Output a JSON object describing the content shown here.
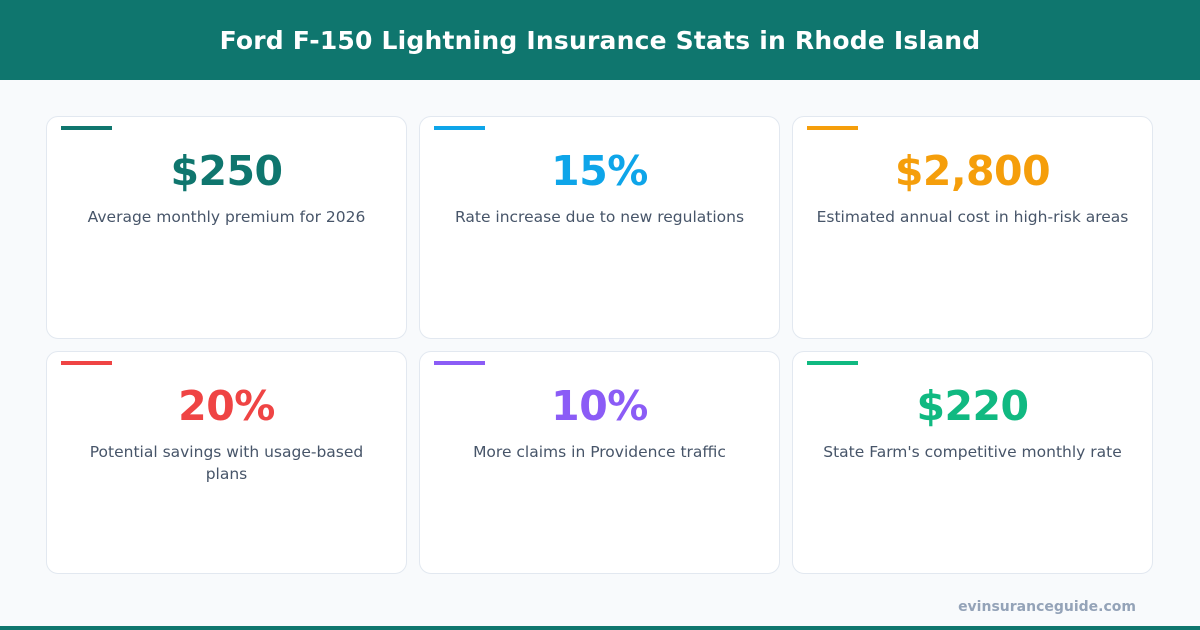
{
  "header": {
    "title": "Ford F-150 Lightning Insurance Stats in Rhode Island"
  },
  "stats": [
    {
      "value": "$250",
      "label": "Average monthly premium for 2026",
      "color": "#0f766e"
    },
    {
      "value": "15%",
      "label": "Rate increase due to new regulations",
      "color": "#0ea5e9"
    },
    {
      "value": "$2,800",
      "label": "Estimated annual cost in high-risk areas",
      "color": "#f59e0b"
    },
    {
      "value": "20%",
      "label": "Potential savings with usage-based plans",
      "color": "#ef4444"
    },
    {
      "value": "10%",
      "label": "More claims in Providence traffic",
      "color": "#8b5cf6"
    },
    {
      "value": "$220",
      "label": "State Farm's competitive monthly rate",
      "color": "#10b981"
    }
  ],
  "footer": {
    "site": "evinsuranceguide.com"
  }
}
